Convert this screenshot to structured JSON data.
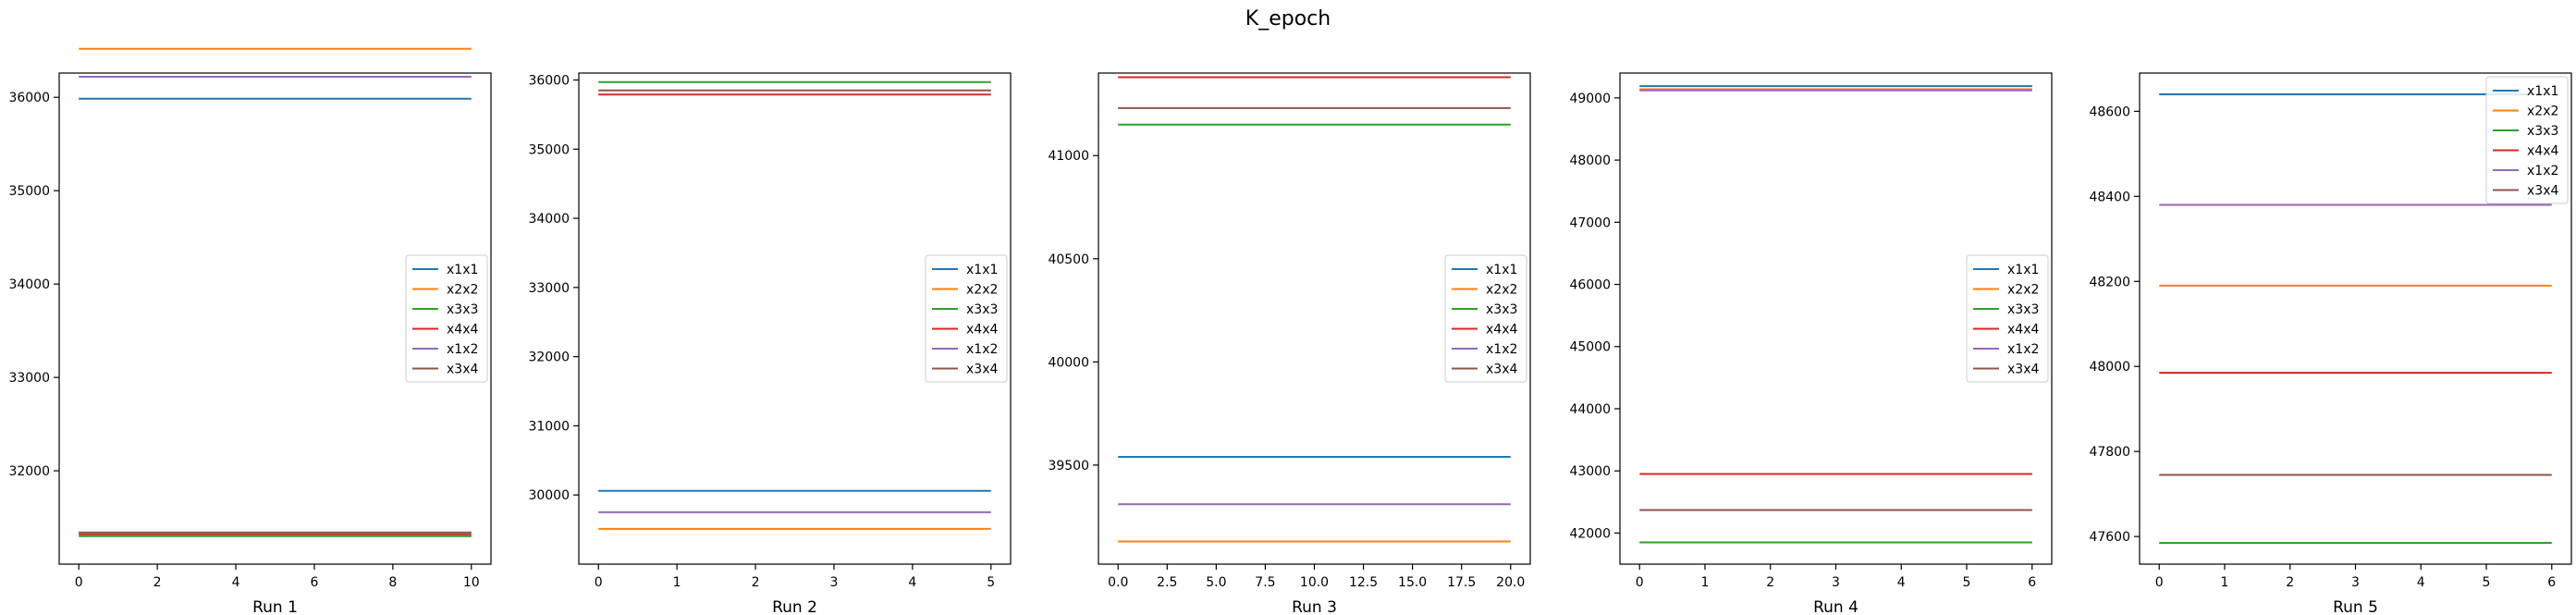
{
  "figure": {
    "title": "K_epoch"
  },
  "series_colors": {
    "x1x1": "#1f77b4",
    "x2x2": "#ff7f0e",
    "x3x3": "#2ca02c",
    "x4x4": "#d62728",
    "x1x2": "#9467bd",
    "x3x4": "#8c564b"
  },
  "chart_data": [
    {
      "type": "line",
      "xlabel": "Run 1",
      "xlim": [
        -0.5,
        10.5
      ],
      "ylim": [
        31000,
        36260
      ],
      "xticks": [
        0,
        2,
        4,
        6,
        8,
        10
      ],
      "xtick_labels": [
        "0",
        "2",
        "4",
        "6",
        "8",
        "10"
      ],
      "yticks": [
        32000,
        33000,
        34000,
        35000,
        36000
      ],
      "ytick_labels": [
        "32000",
        "33000",
        "34000",
        "35000",
        "36000"
      ],
      "legend": "center-right",
      "series": [
        {
          "name": "x1x1",
          "x": [
            0,
            10
          ],
          "values": [
            35985,
            35985
          ]
        },
        {
          "name": "x2x2",
          "x": [
            0,
            10
          ],
          "values": [
            36520,
            36520
          ]
        },
        {
          "name": "x3x3",
          "x": [
            0,
            10
          ],
          "values": [
            31300,
            31300
          ]
        },
        {
          "name": "x4x4",
          "x": [
            0,
            10
          ],
          "values": [
            31320,
            31320
          ]
        },
        {
          "name": "x1x2",
          "x": [
            0,
            10
          ],
          "values": [
            36220,
            36220
          ]
        },
        {
          "name": "x3x4",
          "x": [
            0,
            10
          ],
          "values": [
            31340,
            31340
          ]
        }
      ]
    },
    {
      "type": "line",
      "xlabel": "Run 2",
      "xlim": [
        -0.25,
        5.25
      ],
      "ylim": [
        29000,
        36100
      ],
      "xticks": [
        0,
        1,
        2,
        3,
        4,
        5
      ],
      "xtick_labels": [
        "0",
        "1",
        "2",
        "3",
        "4",
        "5"
      ],
      "yticks": [
        30000,
        31000,
        32000,
        33000,
        34000,
        35000,
        36000
      ],
      "ytick_labels": [
        "30000",
        "31000",
        "32000",
        "33000",
        "34000",
        "35000",
        "36000"
      ],
      "legend": "center-right",
      "series": [
        {
          "name": "x1x1",
          "x": [
            0,
            5
          ],
          "values": [
            30060,
            30060
          ]
        },
        {
          "name": "x2x2",
          "x": [
            0,
            5
          ],
          "values": [
            29510,
            29510
          ]
        },
        {
          "name": "x3x3",
          "x": [
            0,
            5
          ],
          "values": [
            35970,
            35970
          ]
        },
        {
          "name": "x4x4",
          "x": [
            0,
            5
          ],
          "values": [
            35790,
            35790
          ]
        },
        {
          "name": "x1x2",
          "x": [
            0,
            5
          ],
          "values": [
            29750,
            29750
          ]
        },
        {
          "name": "x3x4",
          "x": [
            0,
            5
          ],
          "values": [
            35850,
            35850
          ]
        }
      ]
    },
    {
      "type": "line",
      "xlabel": "Run 3",
      "xlim": [
        -1,
        21
      ],
      "ylim": [
        39020,
        41400
      ],
      "xticks": [
        0,
        2.5,
        5,
        7.5,
        10,
        12.5,
        15,
        17.5,
        20
      ],
      "xtick_labels": [
        "0.0",
        "2.5",
        "5.0",
        "7.5",
        "10.0",
        "12.5",
        "15.0",
        "17.5",
        "20.0"
      ],
      "yticks": [
        39500,
        40000,
        40500,
        41000
      ],
      "ytick_labels": [
        "39500",
        "40000",
        "40500",
        "41000"
      ],
      "legend": "center-right",
      "series": [
        {
          "name": "x1x1",
          "x": [
            0,
            20
          ],
          "values": [
            39540,
            39540
          ]
        },
        {
          "name": "x2x2",
          "x": [
            0,
            20
          ],
          "values": [
            39130,
            39130
          ]
        },
        {
          "name": "x3x3",
          "x": [
            0,
            20
          ],
          "values": [
            41150,
            41150
          ]
        },
        {
          "name": "x4x4",
          "x": [
            0,
            20
          ],
          "values": [
            41380,
            41380
          ]
        },
        {
          "name": "x1x2",
          "x": [
            0,
            20
          ],
          "values": [
            39310,
            39310
          ]
        },
        {
          "name": "x3x4",
          "x": [
            0,
            20
          ],
          "values": [
            41230,
            41230
          ]
        }
      ]
    },
    {
      "type": "line",
      "xlabel": "Run 4",
      "xlim": [
        -0.3,
        6.3
      ],
      "ylim": [
        41500,
        49400
      ],
      "xticks": [
        0,
        1,
        2,
        3,
        4,
        5,
        6
      ],
      "xtick_labels": [
        "0",
        "1",
        "2",
        "3",
        "4",
        "5",
        "6"
      ],
      "yticks": [
        42000,
        43000,
        44000,
        45000,
        46000,
        47000,
        48000,
        49000
      ],
      "ytick_labels": [
        "42000",
        "43000",
        "44000",
        "45000",
        "46000",
        "47000",
        "48000",
        "49000"
      ],
      "legend": "center-right",
      "series": [
        {
          "name": "x1x1",
          "x": [
            0,
            6
          ],
          "values": [
            49190,
            49190
          ]
        },
        {
          "name": "x2x2",
          "x": [
            0,
            6
          ],
          "values": [
            49140,
            49140
          ]
        },
        {
          "name": "x3x3",
          "x": [
            0,
            6
          ],
          "values": [
            41850,
            41850
          ]
        },
        {
          "name": "x4x4",
          "x": [
            0,
            6
          ],
          "values": [
            42950,
            42950
          ]
        },
        {
          "name": "x1x2",
          "x": [
            0,
            6
          ],
          "values": [
            49120,
            49120
          ]
        },
        {
          "name": "x3x4",
          "x": [
            0,
            6
          ],
          "values": [
            42370,
            42370
          ]
        }
      ]
    },
    {
      "type": "line",
      "xlabel": "Run 5",
      "xlim": [
        -0.3,
        6.3
      ],
      "ylim": [
        47535,
        48690
      ],
      "xticks": [
        0,
        1,
        2,
        3,
        4,
        5,
        6
      ],
      "xtick_labels": [
        "0",
        "1",
        "2",
        "3",
        "4",
        "5",
        "6"
      ],
      "yticks": [
        47600,
        47800,
        48000,
        48200,
        48400,
        48600
      ],
      "ytick_labels": [
        "47600",
        "47800",
        "48000",
        "48200",
        "48400",
        "48600"
      ],
      "legend": "upper-right",
      "series": [
        {
          "name": "x1x1",
          "x": [
            0,
            6
          ],
          "values": [
            48640,
            48640
          ]
        },
        {
          "name": "x2x2",
          "x": [
            0,
            6
          ],
          "values": [
            48190,
            48190
          ]
        },
        {
          "name": "x3x3",
          "x": [
            0,
            6
          ],
          "values": [
            47585,
            47585
          ]
        },
        {
          "name": "x4x4",
          "x": [
            0,
            6
          ],
          "values": [
            47985,
            47985
          ]
        },
        {
          "name": "x1x2",
          "x": [
            0,
            6
          ],
          "values": [
            48380,
            48380
          ]
        },
        {
          "name": "x3x4",
          "x": [
            0,
            6
          ],
          "values": [
            47745,
            47745
          ]
        }
      ]
    }
  ]
}
